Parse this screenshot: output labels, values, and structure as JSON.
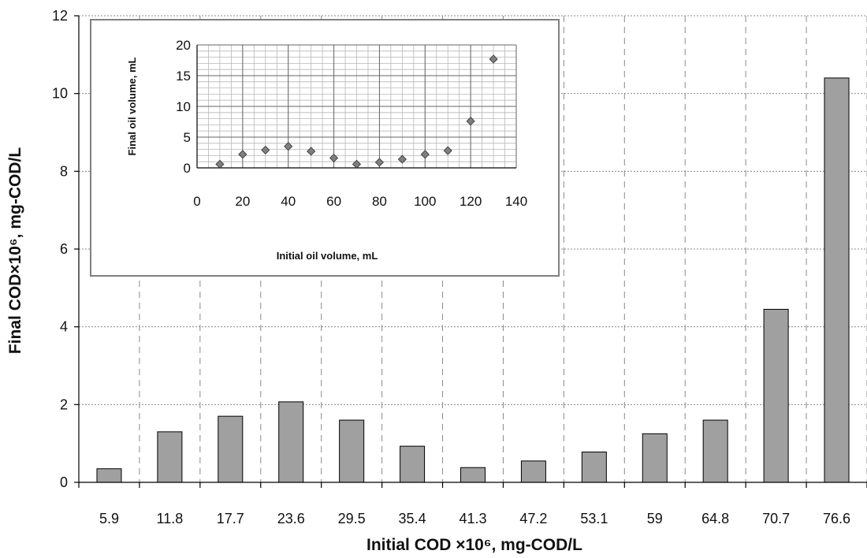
{
  "chart_data": [
    {
      "type": "bar",
      "categories": [
        "5.9",
        "11.8",
        "17.7",
        "23.6",
        "29.5",
        "35.4",
        "41.3",
        "47.2",
        "53.1",
        "59",
        "64.8",
        "70.7",
        "76.6"
      ],
      "values": [
        0.35,
        1.3,
        1.7,
        2.07,
        1.6,
        0.93,
        0.38,
        0.55,
        0.78,
        1.25,
        1.6,
        4.45,
        10.4
      ],
      "xlabel": "Initial COD ×10⁶, mg-COD/L",
      "ylabel": "Final COD×10⁶, mg-COD/L",
      "ylim": [
        0,
        12
      ],
      "yticks": [
        "0",
        "2",
        "4",
        "6",
        "8",
        "10",
        "12"
      ],
      "grid": true,
      "colors": {
        "bar": "#a0a0a0",
        "bar_edge": "#000000",
        "grid": "#8a8a8a"
      }
    },
    {
      "type": "scatter",
      "x": [
        10,
        20,
        30,
        40,
        50,
        60,
        70,
        80,
        90,
        100,
        110,
        120,
        130
      ],
      "y": [
        0.6,
        2.2,
        2.9,
        3.5,
        2.7,
        1.6,
        0.6,
        0.9,
        1.4,
        2.2,
        2.8,
        7.6,
        17.7
      ],
      "xlabel": "Initial oil volume, mL",
      "ylabel": "Final oil volume, mL",
      "xlim": [
        0,
        140
      ],
      "ylim": [
        0,
        20
      ],
      "xticks": [
        "0",
        "20",
        "40",
        "60",
        "80",
        "100",
        "120",
        "140"
      ],
      "yticks": [
        "0",
        "5",
        "10",
        "15",
        "20"
      ],
      "grid": true,
      "colors": {
        "marker": "#7f7f7f",
        "marker_edge": "#333333",
        "grid": "#b8b8b8"
      }
    }
  ]
}
